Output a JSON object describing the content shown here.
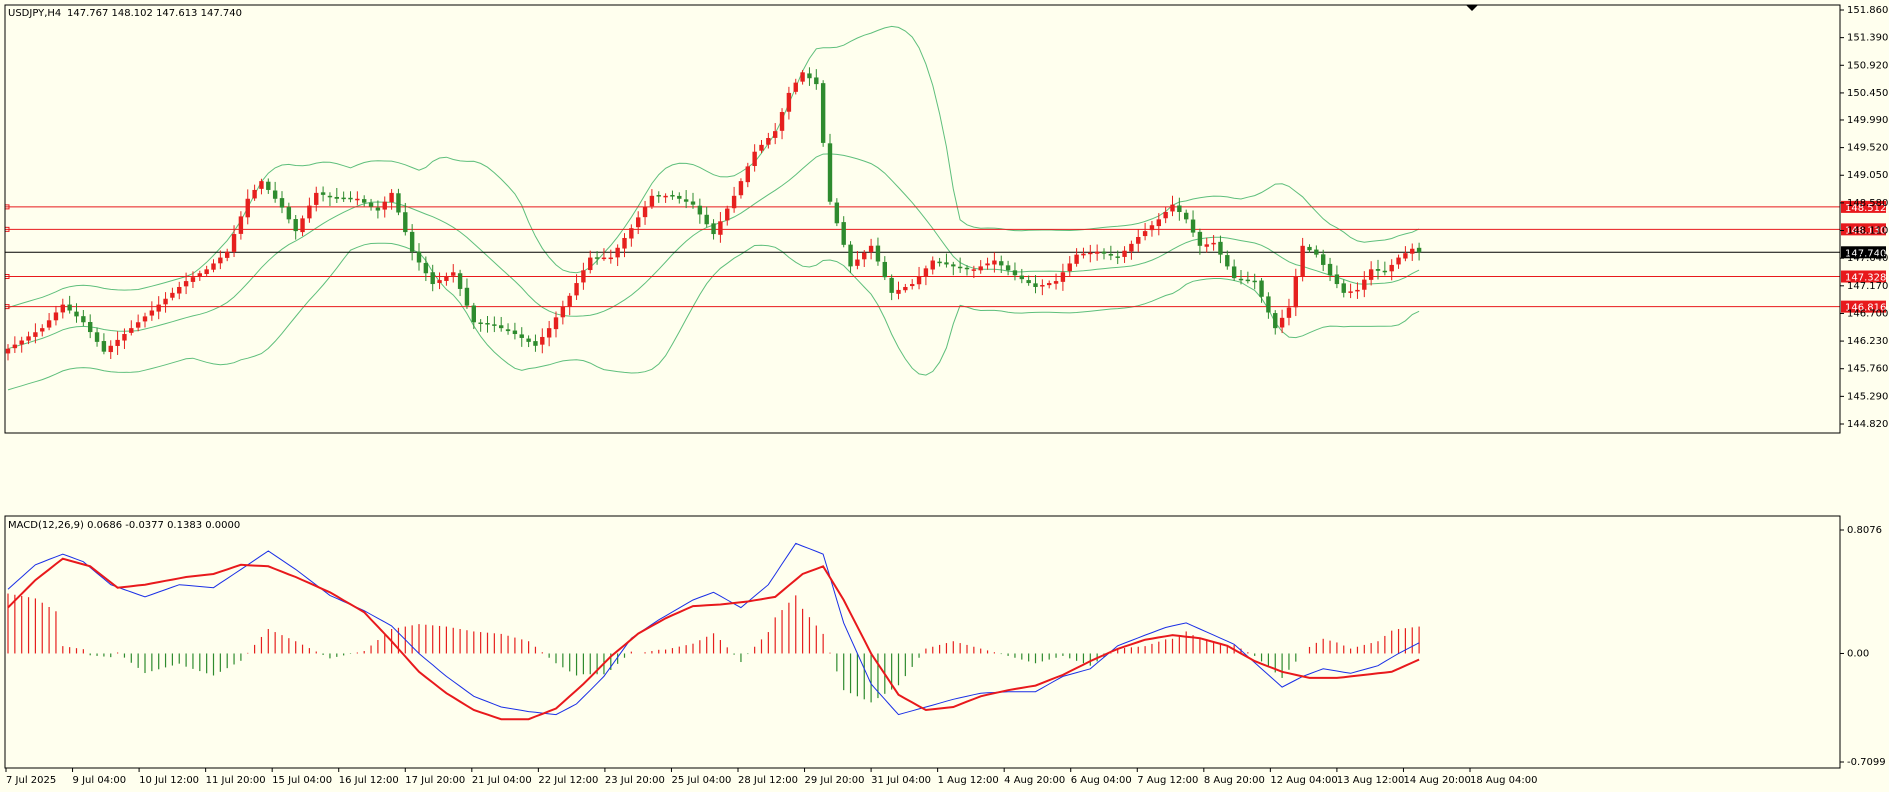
{
  "header": {
    "symbol": "USDJPY,H4",
    "ohlc": "147.767 148.102 147.613 147.740"
  },
  "colors": {
    "background": "#FFFFEE",
    "bull": "#E6201E",
    "bear": "#2E8B2E",
    "band": "#5FBF7C",
    "level_line": "#E8191C",
    "current_line": "#000000",
    "macd_line": "#1A2FE6",
    "signal_line": "#E8191C"
  },
  "chart_data": [
    {
      "type": "candlestick",
      "title": "USDJPY,H4",
      "ylim": [
        144.82,
        151.86
      ],
      "y_ticks": [
        "151.860",
        "151.390",
        "150.920",
        "150.450",
        "149.990",
        "149.520",
        "149.050",
        "148.580",
        "148.110",
        "147.640",
        "147.170",
        "146.700",
        "146.230",
        "145.760",
        "145.290",
        "144.820"
      ],
      "x_tick_labels": [
        "7 Jul 2025",
        "9 Jul 04:00",
        "10 Jul 12:00",
        "11 Jul 20:00",
        "15 Jul 04:00",
        "16 Jul 12:00",
        "17 Jul 20:00",
        "21 Jul 04:00",
        "22 Jul 12:00",
        "23 Jul 20:00",
        "25 Jul 04:00",
        "28 Jul 12:00",
        "29 Jul 20:00",
        "31 Jul 04:00",
        "1 Aug 12:00",
        "4 Aug 20:00",
        "6 Aug 04:00",
        "7 Aug 12:00",
        "8 Aug 20:00",
        "12 Aug 04:00",
        "13 Aug 12:00",
        "14 Aug 20:00",
        "18 Aug 04:00"
      ],
      "close_anchors": [
        [
          0,
          146.1
        ],
        [
          5,
          146.45
        ],
        [
          8,
          146.85
        ],
        [
          11,
          146.55
        ],
        [
          14,
          146.05
        ],
        [
          17,
          146.35
        ],
        [
          20,
          146.65
        ],
        [
          23,
          146.95
        ],
        [
          26,
          147.25
        ],
        [
          29,
          147.45
        ],
        [
          32,
          147.75
        ],
        [
          35,
          148.65
        ],
        [
          37,
          148.95
        ],
        [
          40,
          148.5
        ],
        [
          42,
          148.1
        ],
        [
          45,
          148.75
        ],
        [
          48,
          148.65
        ],
        [
          51,
          148.65
        ],
        [
          54,
          148.45
        ],
        [
          56,
          148.75
        ],
        [
          59,
          147.75
        ],
        [
          62,
          147.2
        ],
        [
          65,
          147.4
        ],
        [
          68,
          146.55
        ],
        [
          71,
          146.5
        ],
        [
          74,
          146.35
        ],
        [
          77,
          146.15
        ],
        [
          79,
          146.45
        ],
        [
          82,
          147.0
        ],
        [
          85,
          147.65
        ],
        [
          88,
          147.65
        ],
        [
          91,
          148.15
        ],
        [
          94,
          148.7
        ],
        [
          97,
          148.7
        ],
        [
          100,
          148.55
        ],
        [
          103,
          148.05
        ],
        [
          106,
          148.7
        ],
        [
          109,
          149.45
        ],
        [
          112,
          149.8
        ],
        [
          114,
          150.45
        ],
        [
          116,
          150.8
        ],
        [
          118,
          150.6
        ],
        [
          120,
          148.6
        ],
        [
          123,
          147.5
        ],
        [
          126,
          147.85
        ],
        [
          129,
          147.05
        ],
        [
          132,
          147.2
        ],
        [
          135,
          147.6
        ],
        [
          138,
          147.5
        ],
        [
          141,
          147.45
        ],
        [
          144,
          147.6
        ],
        [
          147,
          147.35
        ],
        [
          150,
          147.15
        ],
        [
          153,
          147.25
        ],
        [
          156,
          147.7
        ],
        [
          159,
          147.75
        ],
        [
          162,
          147.65
        ],
        [
          165,
          148.0
        ],
        [
          168,
          148.3
        ],
        [
          170,
          148.55
        ],
        [
          172,
          148.3
        ],
        [
          174,
          147.85
        ],
        [
          176,
          147.9
        ],
        [
          179,
          147.3
        ],
        [
          182,
          147.25
        ],
        [
          185,
          146.45
        ],
        [
          187,
          146.8
        ],
        [
          189,
          147.85
        ],
        [
          191,
          147.7
        ],
        [
          193,
          147.35
        ],
        [
          195,
          147.05
        ],
        [
          197,
          147.1
        ],
        [
          199,
          147.45
        ],
        [
          201,
          147.4
        ],
        [
          203,
          147.65
        ],
        [
          205,
          147.8
        ],
        [
          206,
          147.74
        ]
      ],
      "levels": [
        "148.512",
        "148.130",
        "147.740",
        "147.328",
        "146.816"
      ]
    },
    {
      "type": "macd",
      "title": "MACD(12,26,9) 0.0686 -0.0377 0.1383 0.0000",
      "ylim": [
        -0.7099,
        0.8076
      ],
      "y_ticks": [
        "0.8076",
        "0.00",
        "-0.7099"
      ],
      "macd_anchors": [
        [
          0,
          0.42
        ],
        [
          4,
          0.58
        ],
        [
          8,
          0.65
        ],
        [
          11,
          0.6
        ],
        [
          15,
          0.45
        ],
        [
          20,
          0.37
        ],
        [
          25,
          0.45
        ],
        [
          30,
          0.43
        ],
        [
          34,
          0.55
        ],
        [
          38,
          0.67
        ],
        [
          42,
          0.55
        ],
        [
          47,
          0.38
        ],
        [
          52,
          0.28
        ],
        [
          56,
          0.18
        ],
        [
          60,
          0.0
        ],
        [
          64,
          -0.15
        ],
        [
          68,
          -0.28
        ],
        [
          72,
          -0.35
        ],
        [
          76,
          -0.38
        ],
        [
          80,
          -0.4
        ],
        [
          83,
          -0.33
        ],
        [
          87,
          -0.15
        ],
        [
          91,
          0.1
        ],
        [
          95,
          0.22
        ],
        [
          100,
          0.35
        ],
        [
          103,
          0.4
        ],
        [
          107,
          0.3
        ],
        [
          111,
          0.45
        ],
        [
          115,
          0.72
        ],
        [
          119,
          0.65
        ],
        [
          122,
          0.2
        ],
        [
          126,
          -0.2
        ],
        [
          130,
          -0.4
        ],
        [
          134,
          -0.35
        ],
        [
          138,
          -0.3
        ],
        [
          142,
          -0.26
        ],
        [
          146,
          -0.25
        ],
        [
          150,
          -0.25
        ],
        [
          154,
          -0.15
        ],
        [
          158,
          -0.1
        ],
        [
          162,
          0.05
        ],
        [
          166,
          0.12
        ],
        [
          169,
          0.17
        ],
        [
          172,
          0.2
        ],
        [
          176,
          0.12
        ],
        [
          179,
          0.06
        ],
        [
          183,
          -0.1
        ],
        [
          186,
          -0.22
        ],
        [
          189,
          -0.15
        ],
        [
          192,
          -0.1
        ],
        [
          196,
          -0.13
        ],
        [
          200,
          -0.08
        ],
        [
          203,
          0.0
        ],
        [
          206,
          0.07
        ]
      ],
      "signal_anchors": [
        [
          0,
          0.3
        ],
        [
          4,
          0.48
        ],
        [
          8,
          0.62
        ],
        [
          12,
          0.57
        ],
        [
          16,
          0.43
        ],
        [
          20,
          0.45
        ],
        [
          26,
          0.5
        ],
        [
          30,
          0.52
        ],
        [
          34,
          0.58
        ],
        [
          38,
          0.57
        ],
        [
          42,
          0.5
        ],
        [
          47,
          0.4
        ],
        [
          52,
          0.27
        ],
        [
          56,
          0.08
        ],
        [
          60,
          -0.12
        ],
        [
          64,
          -0.26
        ],
        [
          68,
          -0.37
        ],
        [
          72,
          -0.43
        ],
        [
          76,
          -0.43
        ],
        [
          80,
          -0.36
        ],
        [
          84,
          -0.2
        ],
        [
          88,
          -0.02
        ],
        [
          92,
          0.13
        ],
        [
          96,
          0.23
        ],
        [
          100,
          0.31
        ],
        [
          104,
          0.32
        ],
        [
          108,
          0.34
        ],
        [
          112,
          0.37
        ],
        [
          116,
          0.52
        ],
        [
          119,
          0.57
        ],
        [
          122,
          0.35
        ],
        [
          126,
          0.0
        ],
        [
          130,
          -0.27
        ],
        [
          134,
          -0.37
        ],
        [
          138,
          -0.35
        ],
        [
          142,
          -0.28
        ],
        [
          146,
          -0.24
        ],
        [
          150,
          -0.21
        ],
        [
          154,
          -0.14
        ],
        [
          158,
          -0.05
        ],
        [
          162,
          0.03
        ],
        [
          166,
          0.09
        ],
        [
          170,
          0.12
        ],
        [
          174,
          0.1
        ],
        [
          178,
          0.05
        ],
        [
          182,
          -0.05
        ],
        [
          186,
          -0.12
        ],
        [
          190,
          -0.16
        ],
        [
          194,
          -0.16
        ],
        [
          198,
          -0.14
        ],
        [
          202,
          -0.12
        ],
        [
          206,
          -0.04
        ]
      ]
    }
  ]
}
